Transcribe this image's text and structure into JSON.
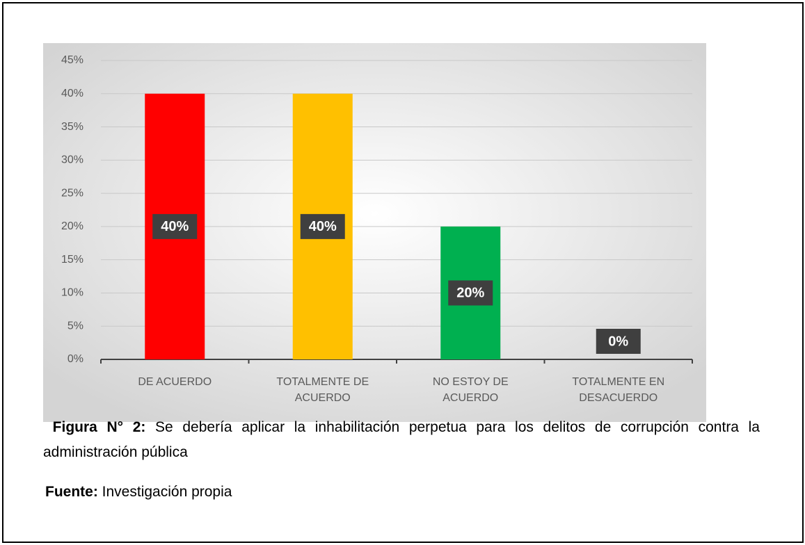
{
  "chart_data": {
    "type": "bar",
    "categories": [
      "DE ACUERDO",
      "TOTALMENTE DE ACUERDO",
      "NO ESTOY DE ACUERDO",
      "TOTALMENTE EN DESACUERDO"
    ],
    "values": [
      40,
      40,
      20,
      0
    ],
    "value_labels": [
      "40%",
      "40%",
      "20%",
      "0%"
    ],
    "colors": [
      "#ff0000",
      "#ffc000",
      "#00b050",
      "#7f7f7f"
    ],
    "ylim": [
      0,
      45
    ],
    "yticks": [
      {
        "value": 0,
        "label": "0%"
      },
      {
        "value": 5,
        "label": "5%"
      },
      {
        "value": 10,
        "label": "10%"
      },
      {
        "value": 15,
        "label": "15%"
      },
      {
        "value": 20,
        "label": "20%"
      },
      {
        "value": 25,
        "label": "25%"
      },
      {
        "value": 30,
        "label": "30%"
      },
      {
        "value": 35,
        "label": "35%"
      },
      {
        "value": 40,
        "label": "40%"
      },
      {
        "value": 45,
        "label": "45%"
      }
    ],
    "grid": true
  },
  "caption": {
    "label": "Figura N° 2:",
    "text": "Se debería aplicar la inhabilitación perpetua para los delitos de corrupción contra la administración pública"
  },
  "source": {
    "label": "Fuente:",
    "text": "Investigación propia"
  }
}
